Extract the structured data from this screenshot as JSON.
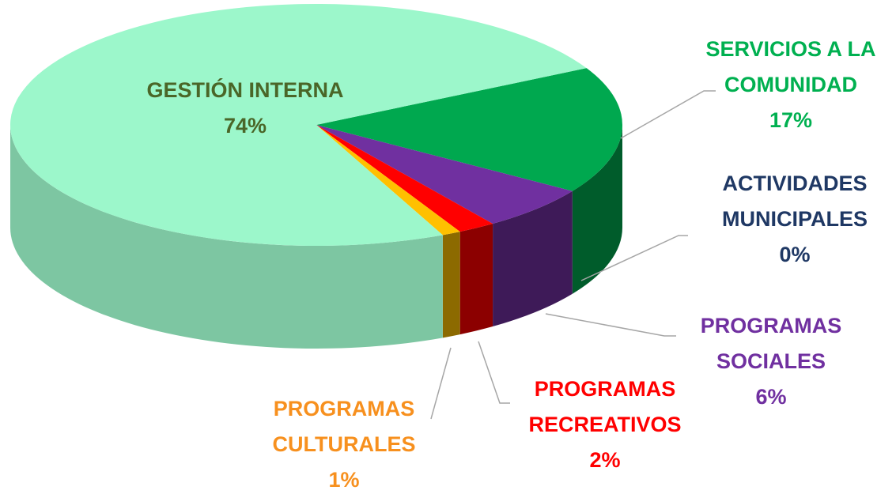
{
  "chart_data": {
    "type": "pie",
    "categories": [
      "SERVICIOS A LA COMUNIDAD",
      "ACTIVIDADES MUNICIPALES",
      "PROGRAMAS SOCIALES",
      "PROGRAMAS RECREATIVOS",
      "PROGRAMAS CULTURALES",
      "GESTIÓN INTERNA"
    ],
    "values": [
      17,
      0,
      6,
      2,
      1,
      74
    ],
    "value_labels": [
      "17%",
      "0%",
      "6%",
      "2%",
      "1%",
      "74%"
    ],
    "colors": [
      "#00a84f",
      "#1f3864",
      "#7030a0",
      "#ff0000",
      "#ffc000",
      "#9cf7cb"
    ],
    "label_colors": [
      "#00b050",
      "#1f3864",
      "#7030a0",
      "#ff0000",
      "#f7901e",
      "#4a6628"
    ]
  }
}
